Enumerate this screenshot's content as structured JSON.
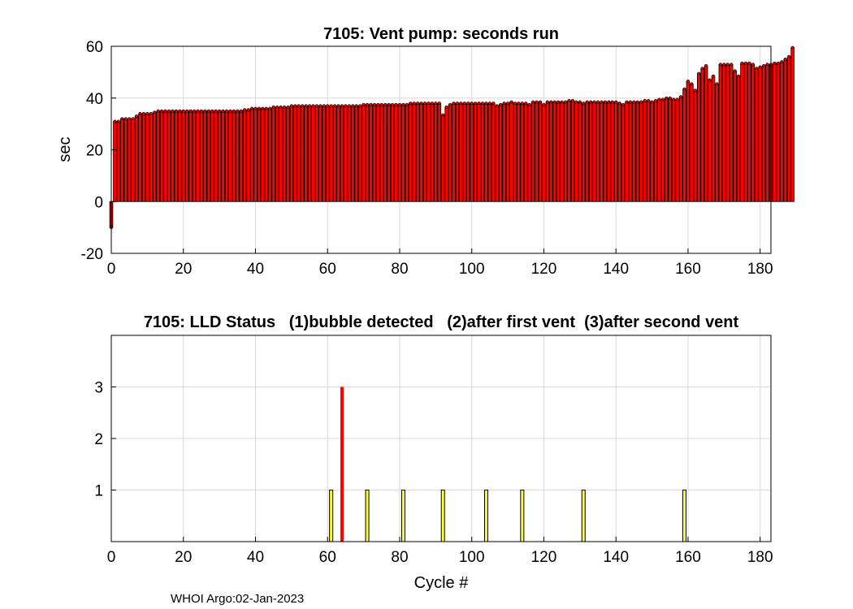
{
  "footer": {
    "text": "WHOI Argo:02-Jan-2023"
  },
  "colors": {
    "stem": "#ff0000",
    "bar_fill": "#ffff33",
    "outline": "#000000",
    "grid": "#d9d9d9"
  },
  "chart_data": [
    {
      "type": "bar",
      "title": "7105: Vent pump: seconds run",
      "xlabel": "",
      "ylabel": "sec",
      "xlim": [
        0,
        183
      ],
      "ylim": [
        -20,
        60
      ],
      "xticks": [
        0,
        20,
        40,
        60,
        80,
        100,
        120,
        140,
        160,
        180
      ],
      "yticks": [
        -20,
        0,
        20,
        40,
        60
      ],
      "grid": true,
      "series": [
        {
          "name": "Vent pump seconds",
          "x_start": 0,
          "values": [
            -10,
            31,
            31,
            32,
            32,
            32,
            32,
            33,
            34,
            34,
            34,
            34,
            34.5,
            35,
            35,
            35,
            35,
            35,
            35,
            35,
            35,
            35,
            35,
            35,
            35,
            35,
            35,
            35,
            35,
            35,
            35,
            35,
            35,
            35,
            35,
            35,
            35,
            35.5,
            35.5,
            36,
            36,
            36,
            36,
            36,
            36,
            36.5,
            36.5,
            36.5,
            36.5,
            36.5,
            37,
            37,
            37,
            37,
            37,
            37,
            37,
            37,
            37,
            37,
            37,
            37,
            37,
            37,
            37,
            37,
            37,
            37,
            37,
            37,
            37.5,
            37.5,
            37.5,
            37.5,
            37.5,
            37.5,
            37.5,
            37.5,
            37.5,
            37.5,
            37.5,
            37.5,
            37.5,
            38,
            38,
            38,
            38,
            38,
            38,
            38,
            38,
            38,
            33.5,
            36.5,
            37.5,
            38,
            38,
            38,
            38,
            38,
            38,
            38,
            38,
            38,
            38,
            38,
            38,
            37,
            37.5,
            38,
            38,
            38.5,
            38,
            38,
            38,
            38,
            37.5,
            38.5,
            38.5,
            38.5,
            37.5,
            38.5,
            38.5,
            38.5,
            38.5,
            38.5,
            38.5,
            39,
            39,
            38.5,
            38.5,
            38,
            38.5,
            38.5,
            38.5,
            38.5,
            38.5,
            38.5,
            38.5,
            38.5,
            38.5,
            38,
            37.5,
            38.5,
            38.5,
            38.5,
            38.5,
            38.5,
            39,
            39,
            38.5,
            39,
            39.5,
            39.5,
            40,
            40,
            39.5,
            39.5,
            40.5,
            43.5,
            46.5,
            45.5,
            43,
            49.5,
            51.5,
            52.5,
            47,
            48.5,
            45.5,
            53,
            53,
            53,
            53,
            50.5,
            48.5,
            53.5,
            53.5,
            53.5,
            53,
            51.5,
            52,
            52.5,
            53,
            53,
            53.5,
            53.5,
            54,
            55,
            56,
            59.5
          ]
        }
      ]
    },
    {
      "type": "bar",
      "title": "7105: LLD Status   (1)bubble detected   (2)after first vent  (3)after second vent",
      "xlabel": "Cycle #",
      "ylabel": "",
      "xlim": [
        0,
        183
      ],
      "ylim": [
        0,
        4
      ],
      "xticks": [
        0,
        20,
        40,
        60,
        80,
        100,
        120,
        140,
        160,
        180
      ],
      "yticks": [
        1,
        2,
        3
      ],
      "grid": true,
      "series": [
        {
          "name": "bubble detected",
          "x": [
            61,
            71,
            81,
            92,
            104,
            114,
            131,
            159
          ],
          "values": [
            1,
            1,
            1,
            1,
            1,
            1,
            1,
            1
          ]
        },
        {
          "name": "after second vent",
          "x": [
            64
          ],
          "values": [
            3
          ]
        }
      ]
    }
  ]
}
